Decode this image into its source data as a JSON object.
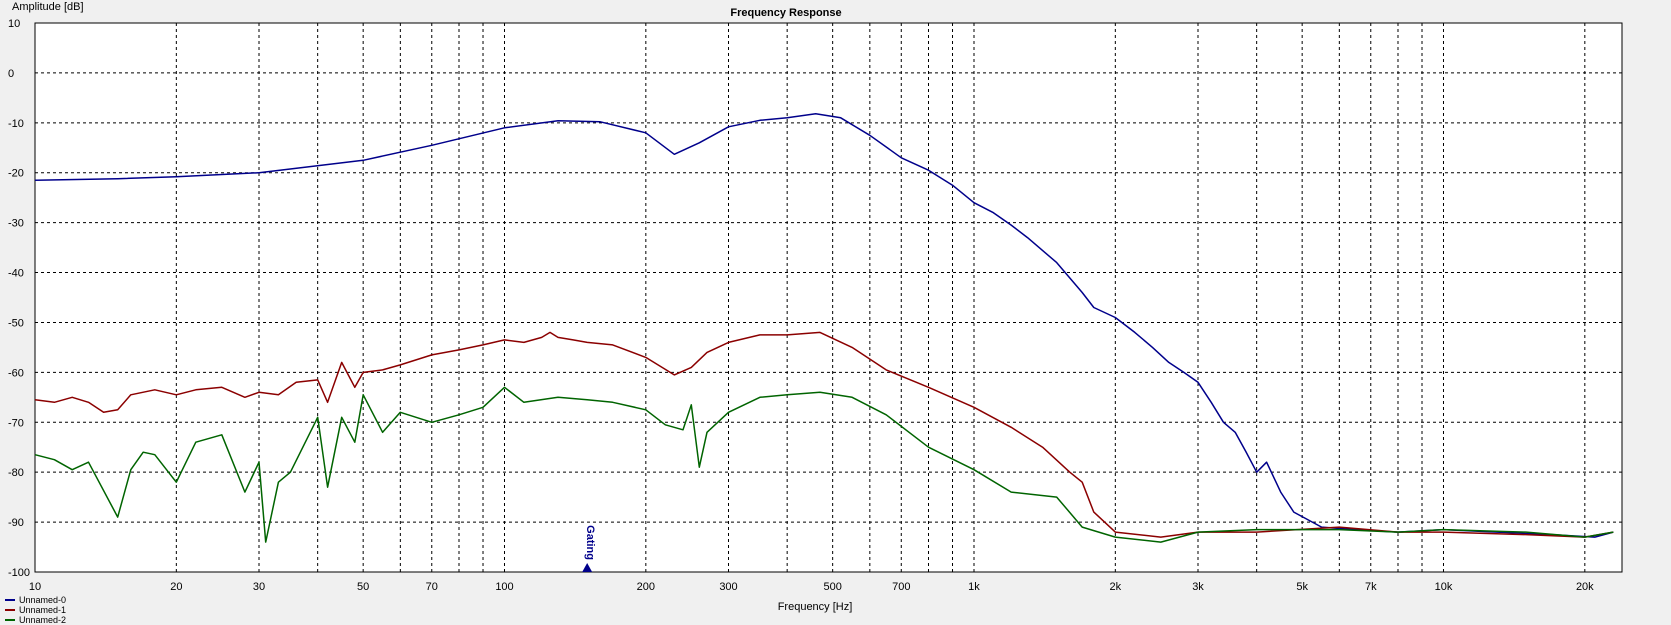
{
  "chart_data": {
    "type": "line",
    "title": "Frequency Response",
    "ylabel": "Amplitude [dB]",
    "xlabel": "Frequency [Hz]",
    "x_scale": "log",
    "xlim": [
      10,
      24000
    ],
    "ylim": [
      -100,
      10
    ],
    "grid": true,
    "y_ticks": [
      10,
      0,
      -10,
      -20,
      -30,
      -40,
      -50,
      -60,
      -70,
      -80,
      -90,
      -100
    ],
    "x_ticks": [
      {
        "value": 10,
        "label": "10"
      },
      {
        "value": 20,
        "label": "20"
      },
      {
        "value": 30,
        "label": "30"
      },
      {
        "value": 50,
        "label": "50"
      },
      {
        "value": 70,
        "label": "70"
      },
      {
        "value": 100,
        "label": "100"
      },
      {
        "value": 200,
        "label": "200"
      },
      {
        "value": 300,
        "label": "300"
      },
      {
        "value": 500,
        "label": "500"
      },
      {
        "value": 700,
        "label": "700"
      },
      {
        "value": 1000,
        "label": "1k"
      },
      {
        "value": 2000,
        "label": "2k"
      },
      {
        "value": 3000,
        "label": "3k"
      },
      {
        "value": 5000,
        "label": "5k"
      },
      {
        "value": 7000,
        "label": "7k"
      },
      {
        "value": 10000,
        "label": "10k"
      },
      {
        "value": 20000,
        "label": "20k"
      }
    ],
    "marker": {
      "label": "Gating",
      "x": 150,
      "color": "#00008b"
    },
    "legend_position": "bottom-left",
    "series": [
      {
        "name": "Unnamed-0",
        "color": "#00008b",
        "x": [
          10,
          15,
          20,
          30,
          50,
          70,
          100,
          130,
          160,
          200,
          230,
          260,
          300,
          350,
          400,
          460,
          520,
          600,
          700,
          800,
          900,
          1000,
          1100,
          1200,
          1300,
          1500,
          1700,
          1800,
          2000,
          2200,
          2400,
          2600,
          2800,
          3000,
          3200,
          3400,
          3600,
          3800,
          4000,
          4200,
          4500,
          4800,
          5500,
          6500,
          8000,
          10000,
          13000,
          17000,
          21000,
          23000
        ],
        "y": [
          -21.5,
          -21.2,
          -20.8,
          -20,
          -17.5,
          -14.5,
          -11,
          -9.6,
          -9.8,
          -12,
          -16.3,
          -14,
          -10.8,
          -9.5,
          -9,
          -8.2,
          -9,
          -12.5,
          -17,
          -19.5,
          -22.5,
          -26,
          -28,
          -30.5,
          -33,
          -38,
          -44,
          -47,
          -49,
          -52,
          -55,
          -58,
          -60,
          -62,
          -66,
          -70,
          -72,
          -76,
          -80,
          -78,
          -84,
          -88,
          -91,
          -91.5,
          -92,
          -91.5,
          -92,
          -92.5,
          -93,
          -92
        ]
      },
      {
        "name": "Unnamed-1",
        "color": "#8b0000",
        "x": [
          10,
          11,
          12,
          13,
          14,
          15,
          16,
          18,
          20,
          22,
          25,
          28,
          30,
          33,
          36,
          40,
          42,
          45,
          48,
          50,
          55,
          60,
          70,
          80,
          90,
          100,
          110,
          120,
          125,
          130,
          140,
          150,
          170,
          200,
          230,
          250,
          270,
          300,
          350,
          400,
          470,
          550,
          650,
          800,
          1000,
          1200,
          1400,
          1600,
          1700,
          1800,
          2000,
          2500,
          3000,
          4000,
          6000,
          8000,
          10000,
          15000,
          20000,
          23000
        ],
        "y": [
          -65.5,
          -66,
          -65,
          -66,
          -68,
          -67.5,
          -64.5,
          -63.5,
          -64.5,
          -63.5,
          -63,
          -65,
          -64,
          -64.5,
          -62,
          -61.5,
          -66,
          -58,
          -63,
          -60,
          -59.5,
          -58.5,
          -56.5,
          -55.5,
          -54.5,
          -53.5,
          -54,
          -53,
          -52,
          -53,
          -53.5,
          -54,
          -54.5,
          -57,
          -60.5,
          -59,
          -56,
          -54,
          -52.5,
          -52.5,
          -52,
          -55,
          -59.5,
          -63,
          -67,
          -71,
          -75,
          -80,
          -82,
          -88,
          -92,
          -93,
          -92,
          -92,
          -91,
          -92,
          -92,
          -92.5,
          -93,
          -92
        ]
      },
      {
        "name": "Unnamed-2",
        "color": "#006400",
        "x": [
          10,
          11,
          12,
          13,
          15,
          16,
          17,
          18,
          20,
          22,
          25,
          28,
          30,
          31,
          33,
          35,
          40,
          42,
          45,
          48,
          50,
          55,
          60,
          70,
          80,
          90,
          100,
          110,
          130,
          150,
          170,
          200,
          220,
          240,
          250,
          260,
          270,
          300,
          350,
          400,
          470,
          550,
          650,
          800,
          1000,
          1200,
          1500,
          1700,
          2000,
          2500,
          3000,
          4000,
          6000,
          8000,
          10000,
          15000,
          20000,
          23000
        ],
        "y": [
          -76.5,
          -77.5,
          -79.5,
          -78,
          -89,
          -79.5,
          -76,
          -76.5,
          -82,
          -74,
          -72.5,
          -84,
          -78,
          -94,
          -82,
          -80,
          -69,
          -83,
          -69,
          -74,
          -64.5,
          -72,
          -68,
          -70,
          -68.5,
          -67,
          -63,
          -66,
          -65,
          -65.5,
          -66,
          -67.5,
          -70.5,
          -71.5,
          -66.5,
          -79,
          -72,
          -68,
          -65,
          -64.5,
          -64,
          -65,
          -68.5,
          -75,
          -79.5,
          -84,
          -85,
          -91,
          -93,
          -94,
          -92,
          -91.5,
          -91.5,
          -92,
          -91.5,
          -92,
          -93,
          -92
        ]
      }
    ]
  }
}
